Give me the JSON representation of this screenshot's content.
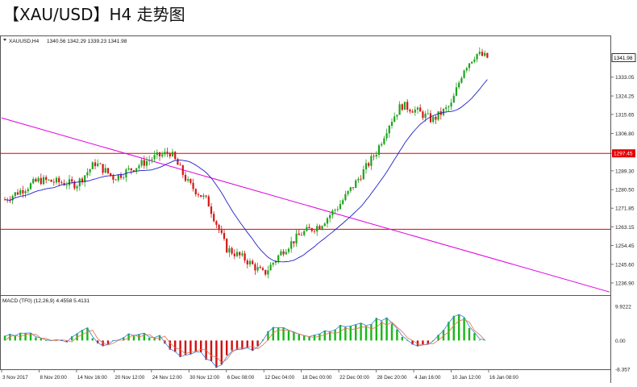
{
  "page": {
    "title": "【XAU/USD】H4 走势图"
  },
  "chart_header": {
    "symbol": "XAUUSD,H4",
    "ohlc": "1340.56 1342.29 1339.23 1341.98"
  },
  "price_tag": {
    "value": "1341.98",
    "color": "#000000"
  },
  "resistance_tag": {
    "value": "1297.45",
    "color": "#e30000"
  },
  "price_axis": [
    "1333.05",
    "1324.25",
    "1315.65",
    "1306.80",
    "1297.45",
    "1289.30",
    "1280.50",
    "1271.85",
    "1263.15",
    "1254.45",
    "1245.60",
    "1236.90"
  ],
  "macd_header": "MACD (TF0) (12,26,9) 4.4558 5.4131",
  "macd_axis": [
    "9.9222",
    "0.00",
    "-8.357"
  ],
  "time_axis": [
    "3 Nov 2017",
    "8 Nov 20:00",
    "14 Nov 16:00",
    "20 Nov 12:00",
    "24 Nov 12:00",
    "30 Nov 12:00",
    "6 Dec 08:00",
    "12 Dec 04:00",
    "18 Dec 00:00",
    "22 Dec 00:00",
    "28 Dec 20:00",
    "4 Jan 16:00",
    "10 Jan 12:00",
    "16 Jan 08:00"
  ],
  "colors": {
    "bull": "#1fa21f",
    "bear": "#d41515",
    "ma": "#2020c8",
    "trendline": "#e000e0",
    "hline": "#e30000",
    "macd_up": "#18b818",
    "macd_down": "#d01010",
    "macd_line": "#3a7fe0",
    "signal_line": "#e07050"
  },
  "chart_data": {
    "type": "candlestick",
    "title": "【XAU/USD】H4 走势图",
    "ylim": [
      1232,
      1348
    ],
    "levels": [
      1297.45,
      1262.0
    ],
    "trendline": {
      "from_x": "3 Nov 2017",
      "from_y": 1314.0,
      "to_x": "16 Jan 08:00",
      "to_y": 1248.5
    },
    "price_path": [
      [
        "3 Nov 2017",
        1275
      ],
      [
        "8 Nov 20:00",
        1285
      ],
      [
        "14 Nov 16:00",
        1283
      ],
      [
        "17 Nov",
        1293
      ],
      [
        "20 Nov 12:00",
        1286
      ],
      [
        "24 Nov 12:00",
        1295
      ],
      [
        "27 Nov",
        1298
      ],
      [
        "30 Nov 12:00",
        1283
      ],
      [
        "4 Dec",
        1275
      ],
      [
        "6 Dec 08:00",
        1253
      ],
      [
        "8 Dec",
        1248
      ],
      [
        "12 Dec 04:00",
        1241
      ],
      [
        "13 Dec",
        1252
      ],
      [
        "18 Dec 00:00",
        1260
      ],
      [
        "20 Dec",
        1264
      ],
      [
        "22 Dec 00:00",
        1273
      ],
      [
        "26 Dec",
        1285
      ],
      [
        "28 Dec 20:00",
        1298
      ],
      [
        "1 Jan",
        1311
      ],
      [
        "3 Jan",
        1320
      ],
      [
        "4 Jan 16:00",
        1318
      ],
      [
        "8 Jan",
        1313
      ],
      [
        "10 Jan 12:00",
        1320
      ],
      [
        "12 Jan",
        1337
      ],
      [
        "15 Jan",
        1344
      ],
      [
        "16 Jan 08:00",
        1342
      ]
    ],
    "macd_range": [
      -8.357,
      9.9222
    ]
  }
}
